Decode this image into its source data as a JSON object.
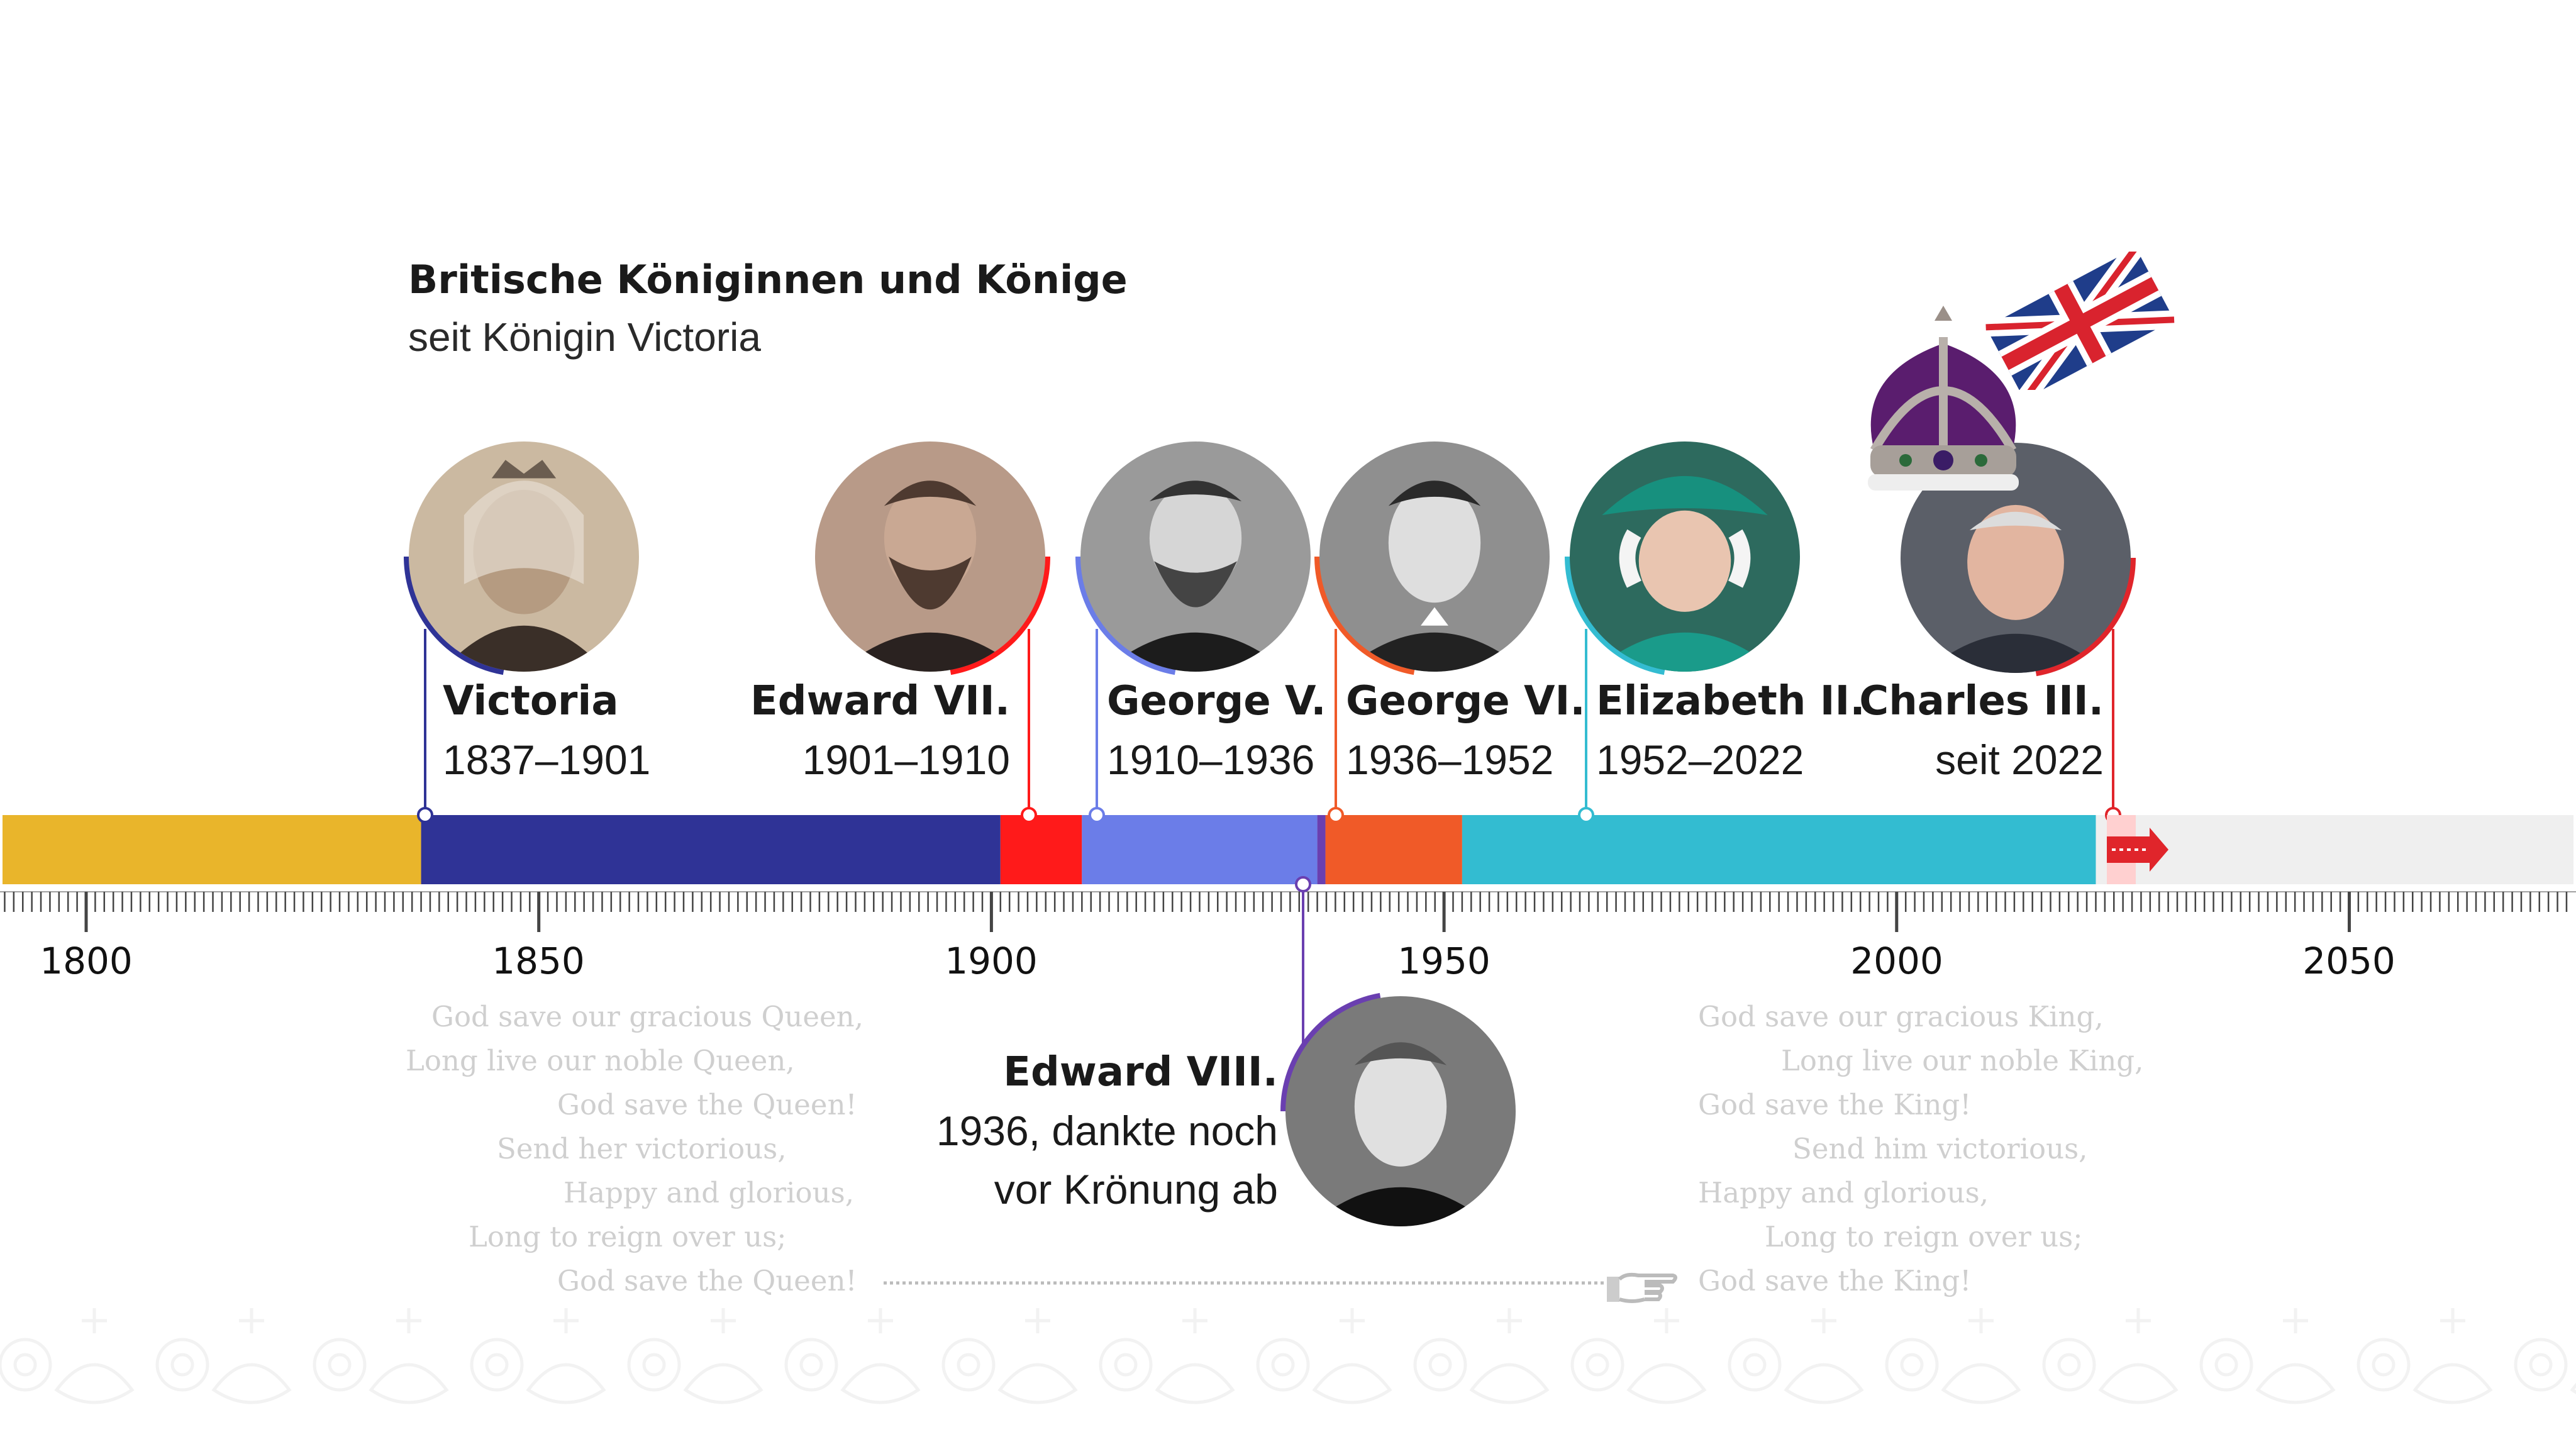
{
  "title": "Britische Königinnen und Könige",
  "subtitle": "seit Königin Victoria",
  "axis": {
    "start_year": 1800,
    "end_year": 2084,
    "ticks": [
      "1800",
      "1850",
      "1900",
      "1950",
      "2000",
      "2050"
    ]
  },
  "reigns": [
    {
      "name": "Victoria",
      "dates": "1837–1901",
      "start": 1837,
      "end": 1901,
      "color": "#2f3396"
    },
    {
      "name": "Edward VII.",
      "dates": "1901–1910",
      "start": 1901,
      "end": 1910,
      "color": "#ff1a1a"
    },
    {
      "name": "George V.",
      "dates": "1910–1936",
      "start": 1910,
      "end": 1936,
      "color": "#6b7de8"
    },
    {
      "name": "Edward VIII.",
      "dates": "1936, dankte noch vor Krönung ab",
      "dates_line1": "1936, dankte noch",
      "dates_line2": "vor Krönung ab",
      "start": 1936,
      "end": 1936.9,
      "color": "#6a3fb0"
    },
    {
      "name": "George VI.",
      "dates": "1936–1952",
      "start": 1936,
      "end": 1952,
      "color": "#f05a28"
    },
    {
      "name": "Elizabeth II.",
      "dates": "1952–2022",
      "start": 1952,
      "end": 2022,
      "color": "#33bcd1"
    },
    {
      "name": "Charles III.",
      "dates": "seit 2022",
      "start": 2022,
      "end": null,
      "color": "#e0252b"
    }
  ],
  "pre_period_color": "#e9b52b",
  "future_color": "#efefef",
  "lyrics_queen": [
    "God save our gracious Queen,",
    "Long live our noble Queen,",
    "God save the Queen!",
    "Send her victorious,",
    "Happy and glorious,",
    "Long to reign over us;",
    "God save the Queen!"
  ],
  "lyrics_king": [
    "God save our gracious King,",
    "Long live our noble King,",
    "God save the King!",
    "Send him victorious,",
    "Happy and glorious,",
    "Long to reign over us;",
    "God save the King!"
  ],
  "icons": [
    "pointing-hand-icon",
    "crown-icon",
    "union-jack-flag-icon",
    "arrow-right-icon",
    "floral-ornament"
  ]
}
